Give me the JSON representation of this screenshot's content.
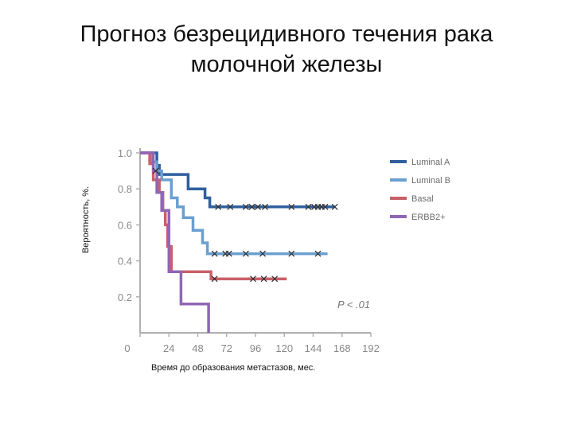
{
  "slide": {
    "title_line1": "Прогноз безрецидивного течения рака",
    "title_line2": "молочной железы"
  },
  "chart_data": {
    "type": "line",
    "step": true,
    "xlabel": "Время до образования метастазов, мес.",
    "ylabel": "Вероятность, %.",
    "xlim": [
      0,
      192
    ],
    "ylim": [
      0,
      1.0
    ],
    "x_ticks": [
      0,
      24,
      48,
      72,
      96,
      120,
      144,
      168,
      192
    ],
    "x_tick_labels": [
      "0",
      "24",
      "48",
      "72",
      "96",
      "120",
      "144",
      "168",
      "192"
    ],
    "y_ticks": [
      0.2,
      0.4,
      0.6,
      0.8,
      1.0
    ],
    "y_tick_labels": [
      "0.2",
      "0.4",
      "0.6",
      "0.8",
      "1.0"
    ],
    "annotation": "P < .01",
    "legend_position": "right",
    "series": [
      {
        "name": "Luminal A",
        "color": "#2f5f9e",
        "points": [
          [
            0,
            1.0
          ],
          [
            14,
            1.0
          ],
          [
            14,
            0.93
          ],
          [
            16,
            0.93
          ],
          [
            16,
            0.88
          ],
          [
            40,
            0.88
          ],
          [
            40,
            0.8
          ],
          [
            54,
            0.8
          ],
          [
            54,
            0.75
          ],
          [
            58,
            0.75
          ],
          [
            58,
            0.7
          ],
          [
            162,
            0.7
          ]
        ],
        "censored": [
          65,
          75,
          88,
          93,
          98,
          104,
          126,
          140,
          145,
          148,
          151,
          154,
          162
        ]
      },
      {
        "name": "Luminal B",
        "color": "#6a9fd0",
        "points": [
          [
            0,
            1.0
          ],
          [
            10,
            1.0
          ],
          [
            10,
            0.95
          ],
          [
            14,
            0.95
          ],
          [
            14,
            0.9
          ],
          [
            18,
            0.9
          ],
          [
            18,
            0.85
          ],
          [
            26,
            0.85
          ],
          [
            26,
            0.75
          ],
          [
            31,
            0.75
          ],
          [
            31,
            0.7
          ],
          [
            36,
            0.7
          ],
          [
            36,
            0.64
          ],
          [
            44,
            0.64
          ],
          [
            44,
            0.57
          ],
          [
            52,
            0.57
          ],
          [
            52,
            0.5
          ],
          [
            56,
            0.5
          ],
          [
            56,
            0.44
          ],
          [
            156,
            0.44
          ]
        ],
        "censored": [
          62,
          71,
          74,
          88,
          102,
          126,
          148
        ]
      },
      {
        "name": "Basal",
        "color": "#c86068",
        "points": [
          [
            0,
            1.0
          ],
          [
            8,
            1.0
          ],
          [
            8,
            0.94
          ],
          [
            11,
            0.94
          ],
          [
            11,
            0.85
          ],
          [
            16,
            0.85
          ],
          [
            16,
            0.78
          ],
          [
            19,
            0.78
          ],
          [
            19,
            0.68
          ],
          [
            21,
            0.68
          ],
          [
            21,
            0.6
          ],
          [
            23,
            0.6
          ],
          [
            23,
            0.48
          ],
          [
            26,
            0.48
          ],
          [
            26,
            0.34
          ],
          [
            59,
            0.34
          ],
          [
            59,
            0.3
          ],
          [
            122,
            0.3
          ]
        ],
        "censored": [
          62,
          94,
          103,
          112
        ]
      },
      {
        "name": "ERBB2+",
        "color": "#9066b4",
        "points": [
          [
            0,
            1.0
          ],
          [
            11,
            1.0
          ],
          [
            11,
            0.9
          ],
          [
            14,
            0.9
          ],
          [
            14,
            0.78
          ],
          [
            18,
            0.78
          ],
          [
            18,
            0.68
          ],
          [
            24,
            0.68
          ],
          [
            24,
            0.34
          ],
          [
            34,
            0.34
          ],
          [
            34,
            0.16
          ],
          [
            57,
            0.16
          ],
          [
            57,
            0.0
          ]
        ],
        "censored": [
          13
        ]
      }
    ]
  }
}
